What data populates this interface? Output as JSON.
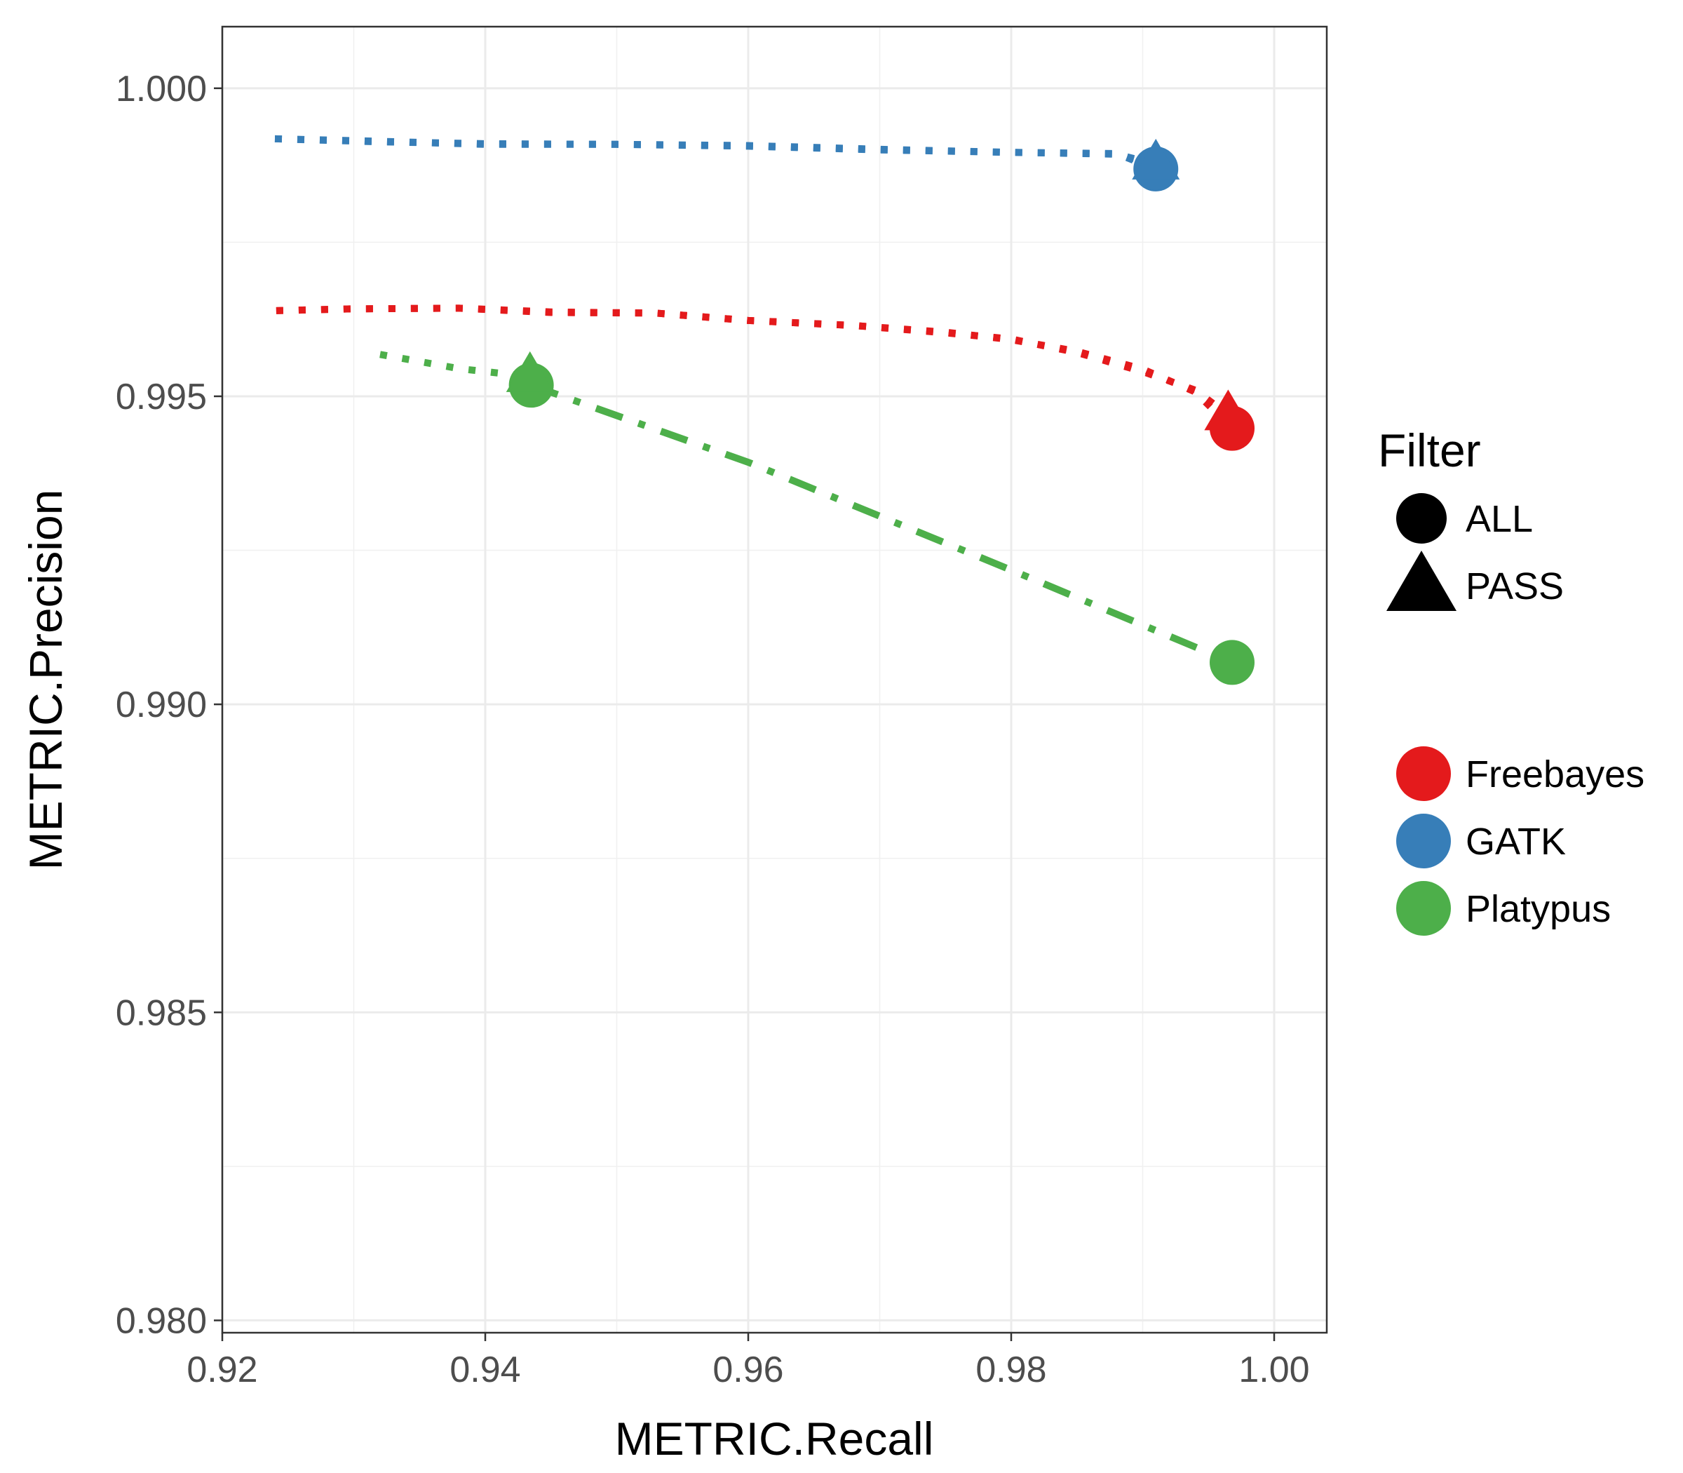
{
  "chart_data": {
    "type": "line",
    "title": "",
    "xlabel": "METRIC.Recall",
    "ylabel": "METRIC.Precision",
    "xlim": [
      0.92,
      1.004
    ],
    "ylim": [
      0.9798,
      1.001
    ],
    "x_ticks": [
      "0.92",
      "0.94",
      "0.96",
      "0.98",
      "1.00"
    ],
    "y_ticks": [
      "0.980",
      "0.985",
      "0.990",
      "0.995",
      "1.000"
    ],
    "x_tick_values": [
      0.92,
      0.94,
      0.96,
      0.98,
      1.0
    ],
    "y_tick_values": [
      0.98,
      0.985,
      0.99,
      0.995,
      1.0
    ],
    "grid": true,
    "legend": {
      "placement": "right",
      "shape_title": "Filter",
      "shape_entries": [
        {
          "label": "ALL",
          "shape": "circle"
        },
        {
          "label": "PASS",
          "shape": "triangle"
        }
      ],
      "color_entries": [
        {
          "label": "Freebayes",
          "color": "#e41a1c"
        },
        {
          "label": "GATK",
          "color": "#377eb8"
        },
        {
          "label": "Platypus",
          "color": "#4daf4a"
        }
      ]
    },
    "series": [
      {
        "name": "Freebayes",
        "color": "#e41a1c",
        "filter": "ALL",
        "line_style": "dotted",
        "x": [
          0.9241,
          0.93,
          0.938,
          0.945,
          0.953,
          0.96,
          0.968,
          0.975,
          0.98,
          0.985,
          0.99,
          0.994,
          0.9968
        ],
        "y": [
          0.99639,
          0.99642,
          0.99643,
          0.99636,
          0.99635,
          0.99623,
          0.99615,
          0.99604,
          0.99592,
          0.99573,
          0.99544,
          0.99507,
          0.99448
        ]
      },
      {
        "name": "Freebayes",
        "color": "#e41a1c",
        "filter": "PASS",
        "line_style": "dotted",
        "x": [
          0.9241,
          0.93,
          0.938,
          0.945,
          0.953,
          0.96,
          0.968,
          0.975,
          0.98,
          0.985,
          0.99,
          0.994,
          0.9965
        ],
        "y": [
          0.99639,
          0.99642,
          0.99643,
          0.99637,
          0.99635,
          0.99623,
          0.99615,
          0.99603,
          0.99593,
          0.99571,
          0.9954,
          0.9951,
          0.9947
        ]
      },
      {
        "name": "GATK",
        "color": "#377eb8",
        "filter": "ALL",
        "line_style": "dotted",
        "x": [
          0.924,
          0.932,
          0.94,
          0.95,
          0.96,
          0.97,
          0.98,
          0.988,
          0.991
        ],
        "y": [
          0.99918,
          0.99913,
          0.9991,
          0.99909,
          0.99906,
          0.999,
          0.99896,
          0.99894,
          0.99869
        ]
      },
      {
        "name": "GATK",
        "color": "#377eb8",
        "filter": "PASS",
        "line_style": "dotted",
        "x": [
          0.924,
          0.932,
          0.94,
          0.95,
          0.96,
          0.97,
          0.98,
          0.988,
          0.991
        ],
        "y": [
          0.99918,
          0.99914,
          0.99909,
          0.99909,
          0.99907,
          0.99901,
          0.99896,
          0.99893,
          0.99877
        ]
      },
      {
        "name": "Platypus",
        "color": "#4daf4a",
        "filter": "ALL",
        "line_style": "dashdot",
        "x": [
          0.9435,
          0.96,
          0.98,
          0.9968
        ],
        "y": [
          0.99518,
          0.99393,
          0.99218,
          0.99068
        ]
      },
      {
        "name": "Platypus",
        "color": "#4daf4a",
        "filter": "PASS",
        "line_style": "dotted",
        "x": [
          0.932,
          0.938,
          0.9434
        ],
        "y": [
          0.99568,
          0.99545,
          0.99532
        ]
      }
    ],
    "points": [
      {
        "series": "Freebayes",
        "filter": "ALL",
        "shape": "circle",
        "x": 0.9968,
        "y": 0.99448,
        "color": "#e41a1c"
      },
      {
        "series": "Freebayes",
        "filter": "PASS",
        "shape": "triangle",
        "x": 0.9965,
        "y": 0.9947,
        "color": "#e41a1c"
      },
      {
        "series": "GATK",
        "filter": "ALL",
        "shape": "circle",
        "x": 0.991,
        "y": 0.99869,
        "color": "#377eb8"
      },
      {
        "series": "GATK",
        "filter": "PASS",
        "shape": "triangle",
        "x": 0.991,
        "y": 0.99877,
        "color": "#377eb8"
      },
      {
        "series": "Platypus",
        "filter": "ALL",
        "shape": "circle",
        "x": 0.9435,
        "y": 0.99518,
        "color": "#4daf4a"
      },
      {
        "series": "Platypus",
        "filter": "ALL",
        "shape": "circle",
        "x": 0.9968,
        "y": 0.99068,
        "color": "#4daf4a"
      },
      {
        "series": "Platypus",
        "filter": "PASS",
        "shape": "triangle",
        "x": 0.9434,
        "y": 0.99532,
        "color": "#4daf4a"
      }
    ]
  }
}
